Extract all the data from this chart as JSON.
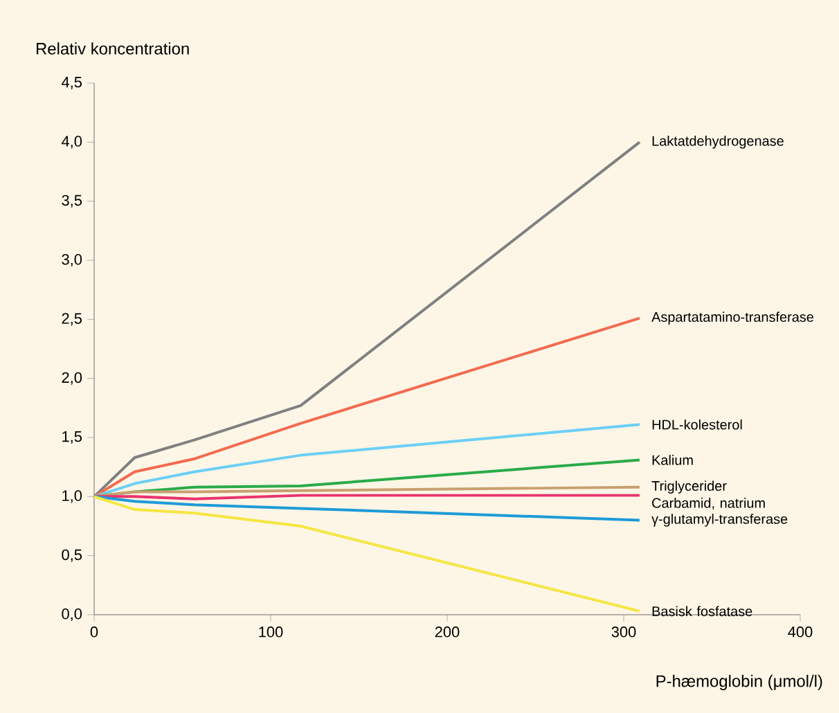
{
  "chart_data": {
    "type": "line",
    "xlabel": "P-hæmoglobin (μmol/l)",
    "ylabel": "Relativ koncentration",
    "x": [
      0,
      23,
      57,
      117,
      309
    ],
    "xlim": [
      0,
      400
    ],
    "xticks": [
      0,
      100,
      200,
      300,
      400
    ],
    "ylim": [
      0,
      4.5
    ],
    "yticks": [
      {
        "value": 0,
        "label": "0,0"
      },
      {
        "value": 0.5,
        "label": "0,5"
      },
      {
        "value": 1,
        "label": "1,0"
      },
      {
        "value": 1.5,
        "label": "1,5"
      },
      {
        "value": 2,
        "label": "2,0"
      },
      {
        "value": 2.5,
        "label": "2,5"
      },
      {
        "value": 3,
        "label": "3,0"
      },
      {
        "value": 3.5,
        "label": "3,5"
      },
      {
        "value": 4,
        "label": "4,0"
      },
      {
        "value": 4.5,
        "label": "4,5"
      }
    ],
    "grid": false,
    "legend": false,
    "line_style": "solid",
    "series": [
      {
        "name": "Laktatdehydrogenase",
        "color": "#808080",
        "values": [
          1.0,
          1.33,
          1.48,
          1.77,
          4.0
        ]
      },
      {
        "name": "Aspartatamino-transferase",
        "color": "#f26b50",
        "values": [
          1.0,
          1.21,
          1.32,
          1.62,
          2.51
        ]
      },
      {
        "name": "HDL-kolesterol",
        "color": "#6ccff6",
        "values": [
          1.0,
          1.11,
          1.21,
          1.35,
          1.61
        ]
      },
      {
        "name": "Kalium",
        "color": "#2aab4a",
        "values": [
          1.0,
          1.04,
          1.08,
          1.09,
          1.31
        ]
      },
      {
        "name": "Triglycerider",
        "color": "#c8a070",
        "values": [
          1.0,
          1.04,
          1.04,
          1.05,
          1.08
        ]
      },
      {
        "name": "Carbamid, natrium",
        "color": "#e8336e",
        "values": [
          1.0,
          1.0,
          0.98,
          1.01,
          1.01
        ]
      },
      {
        "name": "γ-glutamyl-transferase",
        "color": "#1e9bd7",
        "values": [
          1.0,
          0.96,
          0.93,
          0.9,
          0.8
        ]
      },
      {
        "name": "Basisk fosfatase",
        "color": "#f5e642",
        "values": [
          1.0,
          0.89,
          0.86,
          0.75,
          0.03
        ]
      }
    ]
  }
}
